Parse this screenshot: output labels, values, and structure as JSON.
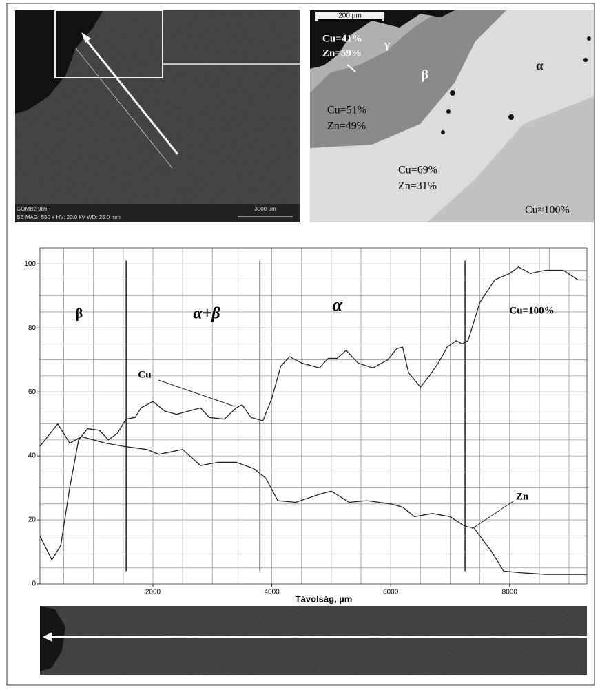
{
  "chart_data": {
    "type": "line",
    "x_label": "Távolság, µm",
    "xlim": [
      100,
      9300
    ],
    "ylim": [
      0,
      105
    ],
    "xticks": [
      2000,
      4000,
      6000,
      8000
    ],
    "yticks": [
      0,
      20,
      40,
      60,
      80,
      100
    ],
    "xgrid": [
      500,
      1000,
      1500,
      2000,
      2500,
      3000,
      3500,
      4000,
      4500,
      5000,
      5500,
      6000,
      6500,
      7000,
      7500,
      8000,
      8500,
      9000
    ],
    "ygrid": [
      5,
      10,
      15,
      20,
      25,
      30,
      35,
      40,
      45,
      50,
      55,
      60,
      65,
      70,
      75,
      80,
      85,
      90,
      95,
      100
    ],
    "phase_boundaries": [
      1550,
      3800,
      7250
    ],
    "boundary_range": [
      4,
      101
    ],
    "phase_labels": [
      "β",
      "α+β",
      "α",
      "Cu=100%"
    ],
    "series": [
      {
        "name": "Cu",
        "color": "#222222",
        "x": [
          100,
          300,
          450,
          600,
          750,
          900,
          1100,
          1250,
          1400,
          1550,
          1700,
          1800,
          2000,
          2200,
          2400,
          2600,
          2800,
          2950,
          3200,
          3400,
          3500,
          3650,
          3850,
          4000,
          4150,
          4300,
          4500,
          4800,
          4950,
          5100,
          5250,
          5450,
          5700,
          5950,
          6100,
          6200,
          6300,
          6500,
          6650,
          6800,
          6950,
          7100,
          7200,
          7300,
          7500,
          7750,
          8000,
          8150,
          8350,
          8600,
          8900,
          9150,
          9300
        ],
        "values": [
          15,
          7.5,
          12,
          30,
          45,
          48.5,
          48,
          45,
          47,
          51.5,
          52,
          55,
          57,
          54,
          53,
          54,
          55,
          52,
          51.5,
          55,
          56,
          52,
          51,
          58,
          68,
          71,
          69,
          67.5,
          70.5,
          70.5,
          73,
          69,
          67.5,
          70,
          73.5,
          74,
          66,
          61.5,
          65,
          69,
          74,
          76,
          75,
          76,
          88,
          95,
          97,
          99,
          97,
          98,
          98,
          95,
          95
        ]
      },
      {
        "name": "Zn",
        "color": "#222222",
        "x": [
          100,
          400,
          600,
          800,
          1000,
          1200,
          1500,
          1900,
          2100,
          2500,
          2800,
          3100,
          3400,
          3700,
          3900,
          4100,
          4400,
          4800,
          5000,
          5300,
          5600,
          6000,
          6200,
          6400,
          6700,
          7000,
          7250,
          7400,
          7700,
          7900,
          8200,
          8600,
          9300
        ],
        "values": [
          43,
          50,
          44,
          46,
          45,
          44,
          43,
          42,
          40.5,
          42,
          37,
          38,
          38,
          36,
          33,
          26,
          25.5,
          28,
          29,
          25.5,
          26,
          25,
          24,
          21,
          22,
          21,
          18,
          17.5,
          10,
          4,
          3.5,
          3,
          3
        ]
      }
    ]
  },
  "images": {
    "overview": {
      "sample": "GOMB2 986",
      "info": "SE  MAG: 550 x  HV: 20.0 kV  WD: 25.0 mm",
      "scale": "3000 µm"
    },
    "detail": {
      "scale": "200 µm",
      "gamma_cu": "Cu=41%",
      "gamma_zn": "Zn=59%",
      "gamma": "γ",
      "beta": "β",
      "alpha": "α",
      "beta_cu": "Cu=51%",
      "beta_zn": "Zn=49%",
      "alpha_cu": "Cu=69%",
      "alpha_zn": "Zn=31%",
      "copper": "Cu≈100%"
    }
  }
}
